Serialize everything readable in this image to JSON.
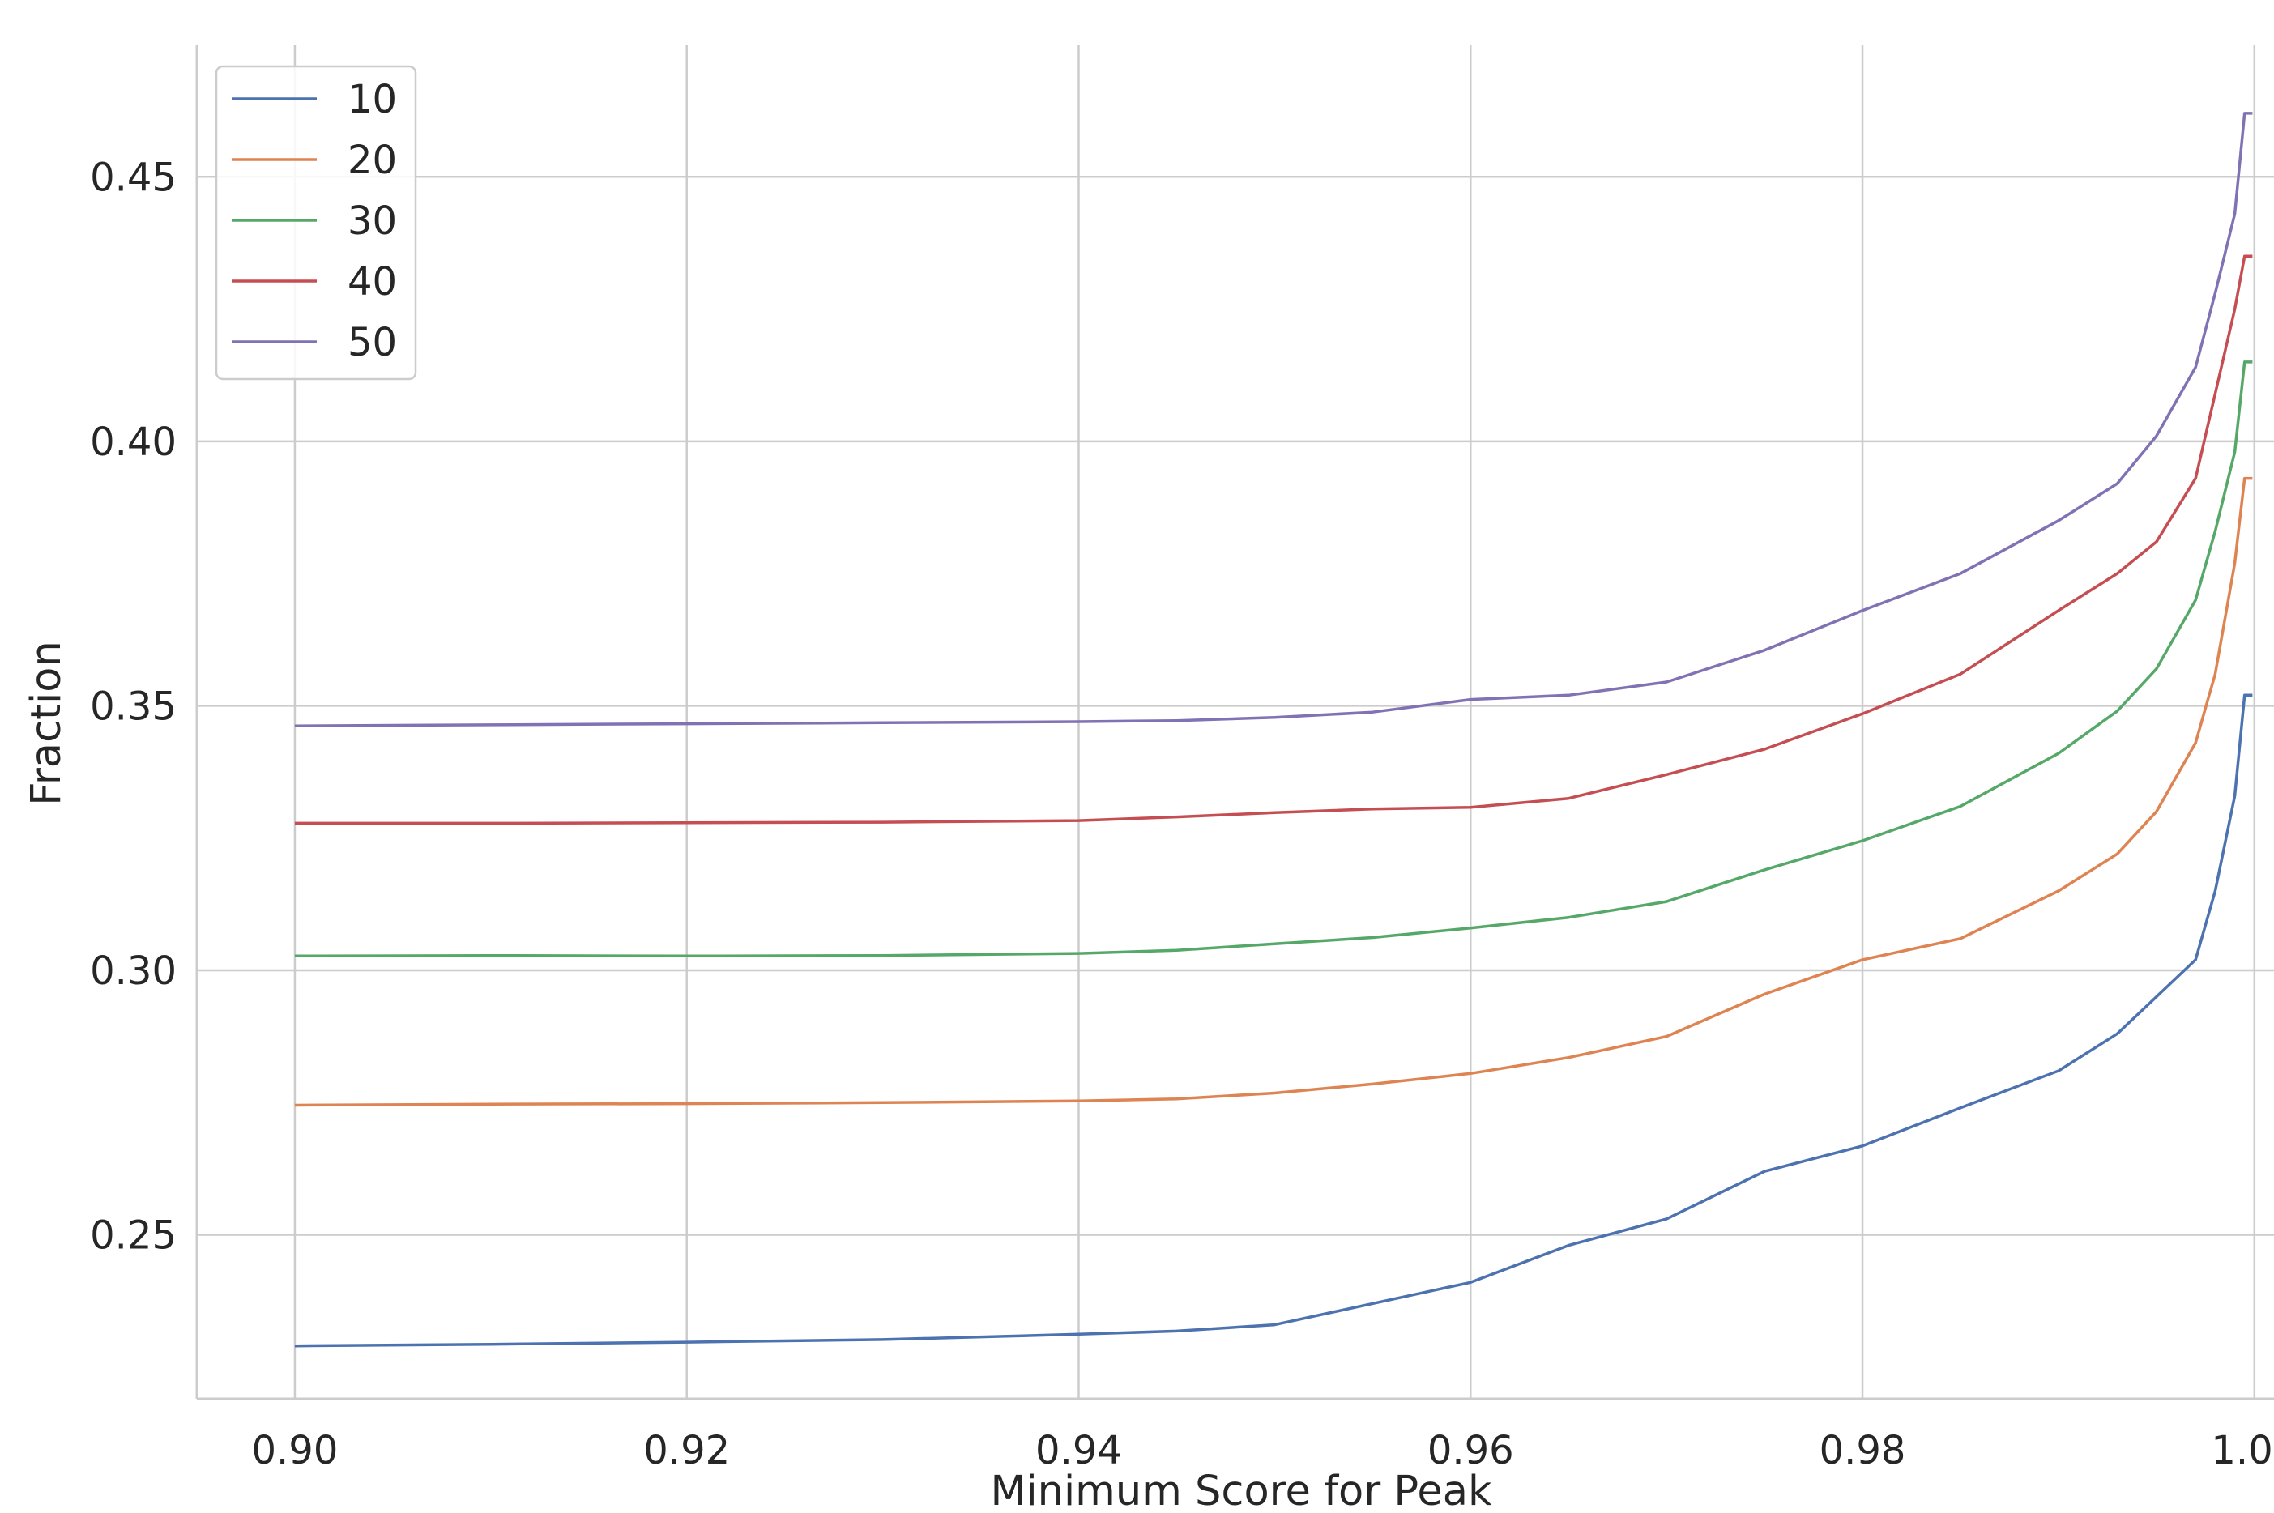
{
  "chart_data": {
    "type": "line",
    "title": "",
    "xlabel": "Minimum Score for Peak",
    "ylabel": "Fraction",
    "xlim": [
      0.895,
      1.001
    ],
    "ylim": [
      0.219,
      0.475
    ],
    "xticks": [
      0.9,
      0.92,
      0.94,
      0.96,
      0.98,
      1.0
    ],
    "xtick_labels": [
      "0.90",
      "0.92",
      "0.94",
      "0.96",
      "0.98",
      "1.00"
    ],
    "yticks": [
      0.25,
      0.3,
      0.35,
      0.4,
      0.45
    ],
    "ytick_labels": [
      "0.25",
      "0.30",
      "0.35",
      "0.40",
      "0.45"
    ],
    "grid": true,
    "legend_position": "top-left",
    "x": [
      0.9,
      0.91,
      0.92,
      0.93,
      0.94,
      0.945,
      0.95,
      0.955,
      0.96,
      0.965,
      0.97,
      0.975,
      0.98,
      0.985,
      0.99,
      0.993,
      0.995,
      0.997,
      0.998,
      0.999,
      0.9995,
      0.9999
    ],
    "series": [
      {
        "name": "10",
        "color": "#4c72b0",
        "values": [
          0.229,
          0.2293,
          0.2297,
          0.2302,
          0.2312,
          0.2318,
          0.233,
          0.237,
          0.241,
          0.248,
          0.253,
          0.262,
          0.2668,
          0.274,
          0.281,
          0.288,
          0.295,
          0.302,
          0.315,
          0.333,
          0.352,
          0.352
        ]
      },
      {
        "name": "20",
        "color": "#dd8452",
        "values": [
          0.2745,
          0.2747,
          0.2748,
          0.275,
          0.2753,
          0.2757,
          0.2768,
          0.2785,
          0.2805,
          0.2835,
          0.2875,
          0.2955,
          0.302,
          0.306,
          0.315,
          0.322,
          0.33,
          0.343,
          0.356,
          0.377,
          0.393,
          0.393
        ]
      },
      {
        "name": "30",
        "color": "#55a868",
        "values": [
          0.3027,
          0.3028,
          0.3027,
          0.3028,
          0.3032,
          0.3038,
          0.305,
          0.3062,
          0.308,
          0.31,
          0.313,
          0.319,
          0.3245,
          0.331,
          0.341,
          0.349,
          0.357,
          0.37,
          0.383,
          0.398,
          0.415,
          0.415
        ]
      },
      {
        "name": "40",
        "color": "#c44e52",
        "values": [
          0.3278,
          0.3278,
          0.3279,
          0.328,
          0.3283,
          0.329,
          0.3298,
          0.3305,
          0.3308,
          0.3325,
          0.337,
          0.3418,
          0.3485,
          0.356,
          0.368,
          0.375,
          0.381,
          0.393,
          0.409,
          0.425,
          0.435,
          0.435
        ]
      },
      {
        "name": "50",
        "color": "#8172b3",
        "values": [
          0.3462,
          0.3464,
          0.3466,
          0.3468,
          0.347,
          0.3472,
          0.3478,
          0.3488,
          0.3512,
          0.352,
          0.3545,
          0.3605,
          0.368,
          0.375,
          0.385,
          0.392,
          0.401,
          0.414,
          0.428,
          0.443,
          0.462,
          0.462
        ]
      }
    ]
  }
}
